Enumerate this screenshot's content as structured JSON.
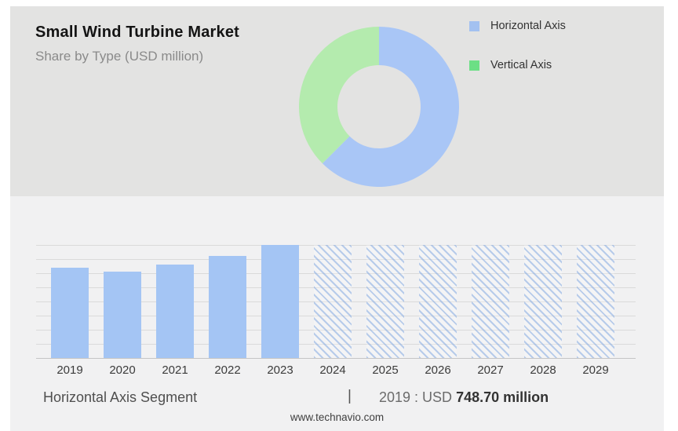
{
  "chart_data": [
    {
      "type": "pie",
      "subtype": "donut",
      "title": "Small Wind Turbine Market",
      "subtitle": "Share by Type (USD million)",
      "labels": [
        "Horizontal Axis",
        "Vertical Axis"
      ],
      "values_pct": [
        62.5,
        37.5
      ],
      "slice_colors": [
        "#a9c6f6",
        "#b4ebae"
      ],
      "legend_colors": [
        "#a3c1f0",
        "#6cdf85"
      ],
      "legend_position": "right",
      "start_angle_deg": 0,
      "direction": "clockwise"
    },
    {
      "type": "bar",
      "categories": [
        "2019",
        "2020",
        "2021",
        "2022",
        "2023",
        "2024",
        "2025",
        "2026",
        "2027",
        "2028",
        "2029"
      ],
      "values": [
        748.7,
        716,
        775,
        846,
        937,
        null,
        null,
        null,
        null,
        null,
        null
      ],
      "hatched": [
        false,
        false,
        false,
        false,
        false,
        true,
        true,
        true,
        true,
        true,
        true
      ],
      "ymax": 937,
      "ylim": [
        0,
        937
      ],
      "grid": true,
      "gridline_count": 9,
      "bar_color": "#a4c5f4",
      "note_visual": "2024-2029 drawn as full-height diagonal-hatched forecast bars",
      "annotation": "2019 : USD 748.70 million"
    }
  ],
  "footer": {
    "segment_label": "Horizontal Axis Segment",
    "separator": "|",
    "value_prefix": "2019 : USD ",
    "value_bold": "748.70 million",
    "website": "www.technavio.com"
  }
}
